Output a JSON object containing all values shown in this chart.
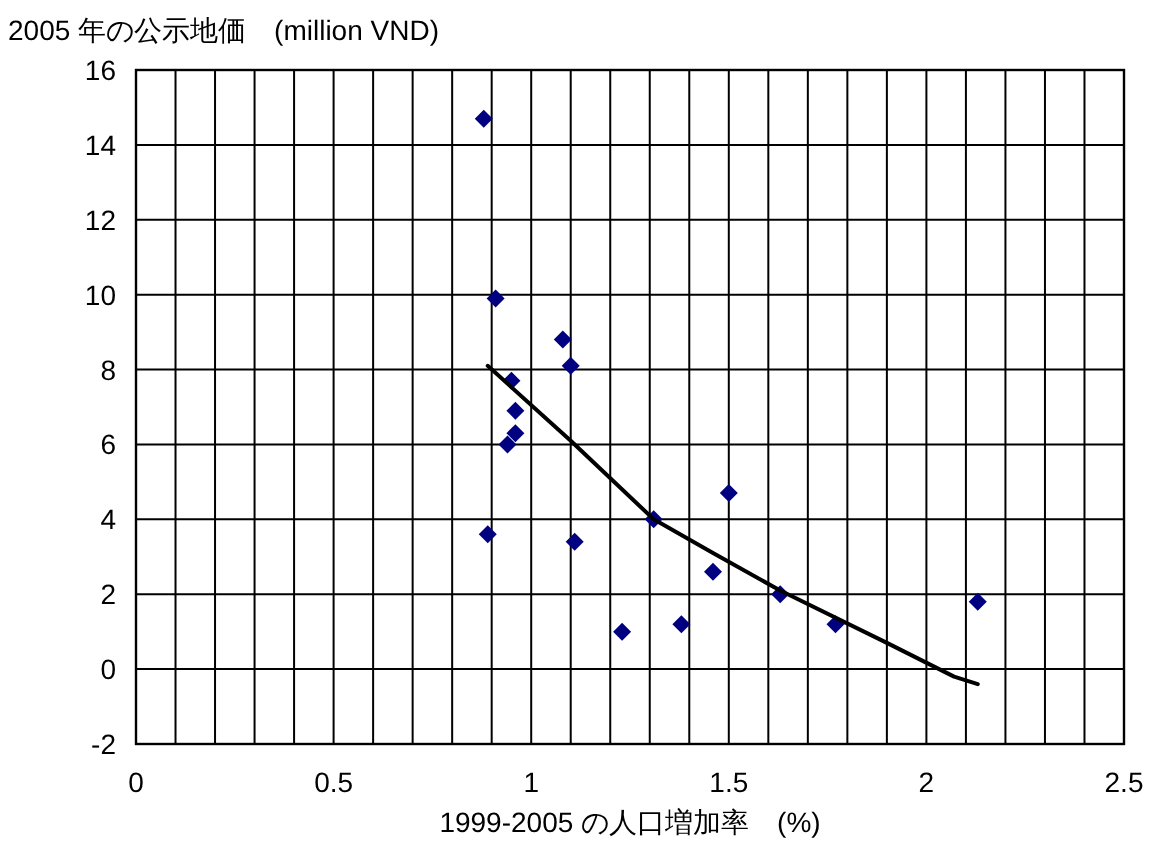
{
  "chart_data": {
    "type": "scatter",
    "title": "2005 年の公示地価　(million VND)",
    "xlabel": "1999-2005 の人口増加率　(%)",
    "xlim": [
      0,
      2.5
    ],
    "ylim": [
      -2,
      16
    ],
    "xticks": [
      0,
      {
        "value": 0.1,
        "label": null
      },
      {
        "value": 0.2,
        "label": null
      },
      {
        "value": 0.3,
        "label": null
      },
      {
        "value": 0.4,
        "label": null
      },
      0.5,
      {
        "value": 0.6,
        "label": null
      },
      {
        "value": 0.7,
        "label": null
      },
      {
        "value": 0.8,
        "label": null
      },
      {
        "value": 0.9,
        "label": null
      },
      1,
      {
        "value": 1.1,
        "label": null
      },
      {
        "value": 1.2,
        "label": null
      },
      {
        "value": 1.3,
        "label": null
      },
      {
        "value": 1.4,
        "label": null
      },
      1.5,
      {
        "value": 1.6,
        "label": null
      },
      {
        "value": 1.7,
        "label": null
      },
      {
        "value": 1.8,
        "label": null
      },
      {
        "value": 1.9,
        "label": null
      },
      2,
      {
        "value": 2.1,
        "label": null
      },
      {
        "value": 2.2,
        "label": null
      },
      {
        "value": 2.3,
        "label": null
      },
      {
        "value": 2.4,
        "label": null
      },
      2.5
    ],
    "yticks": [
      -2,
      0,
      2,
      4,
      6,
      8,
      10,
      12,
      14,
      16
    ],
    "grid": true,
    "series": [
      {
        "color": "#000080",
        "marker": "diamond",
        "x": [
          0.88,
          0.91,
          1.08,
          1.1,
          0.95,
          0.96,
          0.96,
          0.94,
          0.89,
          1.11,
          1.31,
          1.5,
          1.46,
          1.23,
          1.38,
          1.63,
          1.77,
          2.13
        ],
        "values": [
          14.7,
          9.9,
          8.8,
          8.1,
          7.7,
          6.9,
          6.3,
          6.0,
          3.6,
          3.4,
          4.0,
          4.7,
          2.6,
          1.0,
          1.2,
          2.0,
          1.2,
          1.8
        ]
      },
      {
        "type": "line",
        "color": "#000000",
        "marker": "none",
        "line_style": "solid",
        "x": [
          0.89,
          1.1,
          1.31,
          1.46,
          1.63,
          1.9,
          2.07,
          2.13
        ],
        "values": [
          8.1,
          6.1,
          4.0,
          3.1,
          2.1,
          0.7,
          -0.2,
          -0.4
        ]
      }
    ]
  }
}
